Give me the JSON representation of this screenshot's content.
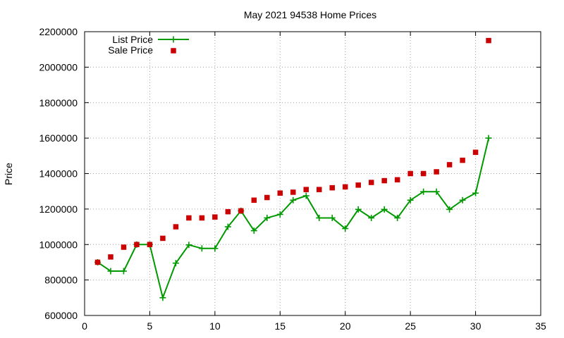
{
  "chart_data": {
    "type": "line",
    "title": "May 2021 94538 Home Prices",
    "xlabel": "",
    "ylabel": "Price",
    "xlim": [
      0,
      35
    ],
    "ylim": [
      600000,
      2200000
    ],
    "xticks": [
      0,
      5,
      10,
      15,
      20,
      25,
      30,
      35
    ],
    "yticks": [
      600000,
      800000,
      1000000,
      1200000,
      1400000,
      1600000,
      1800000,
      2000000,
      2200000
    ],
    "grid": true,
    "legend_position": "top-left",
    "series": [
      {
        "name": "List Price",
        "style": "line-with-plus-markers",
        "color": "#009900",
        "x": [
          1,
          2,
          3,
          4,
          5,
          6,
          7,
          8,
          9,
          10,
          11,
          12,
          13,
          14,
          15,
          16,
          17,
          18,
          19,
          20,
          21,
          22,
          23,
          24,
          25,
          26,
          27,
          28,
          29,
          30,
          31
        ],
        "values": [
          900000,
          850000,
          850000,
          1000000,
          1000000,
          700000,
          895000,
          998000,
          978000,
          978000,
          1100000,
          1190000,
          1078000,
          1150000,
          1170000,
          1250000,
          1275000,
          1150000,
          1150000,
          1090000,
          1198000,
          1150000,
          1198000,
          1150000,
          1250000,
          1298000,
          1298000,
          1198000,
          1250000,
          1290000,
          1600000
        ]
      },
      {
        "name": "Sale Price",
        "style": "square-points",
        "color": "#cc0000",
        "x": [
          1,
          2,
          3,
          4,
          5,
          6,
          7,
          8,
          9,
          10,
          11,
          12,
          13,
          14,
          15,
          16,
          17,
          18,
          19,
          20,
          21,
          22,
          23,
          24,
          25,
          26,
          27,
          28,
          29,
          30,
          31
        ],
        "values": [
          900000,
          930000,
          985000,
          1000000,
          1000000,
          1035000,
          1100000,
          1150000,
          1150000,
          1155000,
          1185000,
          1190000,
          1250000,
          1265000,
          1290000,
          1295000,
          1310000,
          1310000,
          1320000,
          1325000,
          1335000,
          1350000,
          1360000,
          1365000,
          1400000,
          1400000,
          1410000,
          1450000,
          1475000,
          1520000,
          2150000
        ]
      }
    ]
  }
}
